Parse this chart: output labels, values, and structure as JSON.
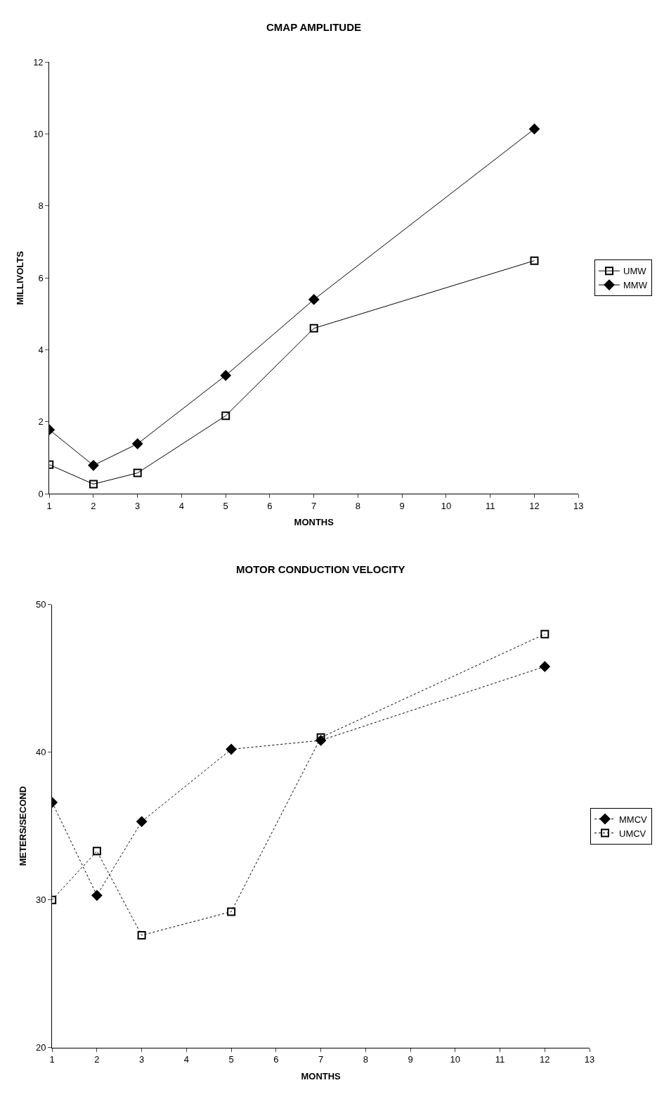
{
  "chart_data": [
    {
      "type": "line",
      "title": "CMAP AMPLITUDE",
      "xlabel": "MONTHS",
      "ylabel": "MILLIVOLTS",
      "x": [
        1,
        2,
        3,
        5,
        7,
        12
      ],
      "xlim": [
        1,
        13
      ],
      "xticks": [
        1,
        2,
        3,
        4,
        5,
        6,
        7,
        8,
        9,
        10,
        11,
        12,
        13
      ],
      "ylim": [
        0,
        12
      ],
      "yticks": [
        0,
        2,
        4,
        6,
        8,
        10,
        12
      ],
      "grid": false,
      "legend": "right",
      "line_style": "solid",
      "series": [
        {
          "name": "UMW",
          "color": "#000000",
          "marker": "square",
          "values": [
            0.81,
            0.27,
            0.58,
            2.17,
            4.6,
            6.48
          ]
        },
        {
          "name": "MMW",
          "color": "#000000",
          "marker": "diamond",
          "values": [
            1.78,
            0.79,
            1.39,
            3.29,
            5.4,
            10.14
          ]
        }
      ]
    },
    {
      "type": "line",
      "title": "MOTOR CONDUCTION VELOCITY",
      "xlabel": "MONTHS",
      "ylabel": "METERS/SECOND",
      "x": [
        1,
        2,
        3,
        5,
        7,
        12
      ],
      "xlim": [
        1,
        13
      ],
      "xticks": [
        1,
        2,
        3,
        4,
        5,
        6,
        7,
        8,
        9,
        10,
        11,
        12,
        13
      ],
      "ylim": [
        20,
        50
      ],
      "yticks": [
        20,
        30,
        40,
        50
      ],
      "grid": false,
      "legend": "right",
      "line_style": "dotted",
      "series": [
        {
          "name": "MMCV",
          "color": "#000000",
          "marker": "diamond",
          "values": [
            36.6,
            30.3,
            35.3,
            40.2,
            40.8,
            45.8
          ]
        },
        {
          "name": "UMCV",
          "color": "#000000",
          "marker": "square",
          "values": [
            30.0,
            33.3,
            27.6,
            29.2,
            41.0,
            48.0
          ]
        }
      ]
    }
  ]
}
